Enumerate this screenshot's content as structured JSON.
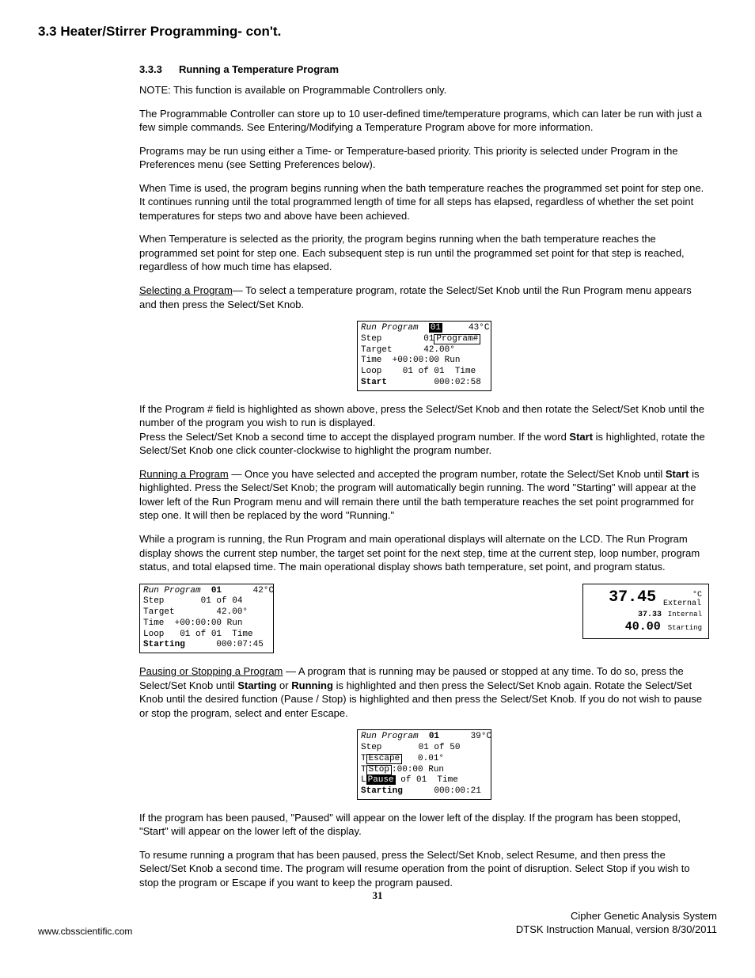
{
  "heading": "3.3 Heater/Stirrer Programming- con't.",
  "sub_num": "3.3.3",
  "sub_title": "Running a Temperature Program",
  "p_note": "NOTE: This function is available on Programmable Controllers only.",
  "p_store": "The Programmable Controller can store up to 10 user-defined time/temperature programs, which can later be run with just a few simple commands. See Entering/Modifying a Temperature Program above for more information.",
  "p_priority": "Programs may be run using either a Time- or Temperature-based priority.  This priority is selected under Program in the Preferences menu (see Setting Preferences below).",
  "p_time": "When Time is used, the program begins running when the bath temperature reaches the programmed set point for step one. It continues running until the total programmed length of time for all steps has elapsed, regardless of whether the set point temperatures for steps two and above have been achieved.",
  "p_temp": "When Temperature is selected as the priority, the program begins running when the bath temperature reaches the programmed set point for step one. Each subsequent step is run until the programmed set point for that step is reached, regardless of how much time has elapsed.",
  "sel_lead": "Selecting a Program",
  "sel_rest": "— To select a temperature program, rotate the Select/Set Knob until the Run Program menu appears and then press the Select/Set Knob.",
  "lcd1": {
    "l1a": "Run Program",
    "l1b": "01",
    "l1c": "43°C",
    "l2a": "Step        01",
    "l2b": "Program#",
    "l3": "Target      42.00°",
    "l4": "Time  +00:00:00 Run",
    "l5": "Loop    01 of 01  Time",
    "l6a": "Start",
    "l6b": "000:02:58"
  },
  "p_prognum_a": "If the Program # field is highlighted as shown above, press the Select/Set Knob and then rotate the Select/Set Knob until the number of the program you wish to run is displayed.",
  "p_prognum_b_prefix": "Press the Select/Set Knob a second time to accept the displayed program number. If the word ",
  "p_prognum_b_bold": "Start",
  "p_prognum_b_suffix": " is highlighted, rotate the Select/Set Knob one click counter-clockwise to highlight the program number.",
  "run_lead": "Running a Program",
  "run_rest_a": " — Once you have selected and accepted the program number, rotate the Select/Set Knob until ",
  "run_bold": "Start",
  "run_rest_b": " is highlighted. Press the Select/Set Knob; the program will automatically begin running. The word \"Starting\" will appear at the lower left of the Run Program menu and will remain there until the bath temperature reaches the set point programmed for step one. It will then be replaced by the word \"Running.\"",
  "p_while": "While a program is running, the Run Program and main operational displays will alternate on the LCD. The Run Program display shows the current step number, the target set point for the next step, time at the current step, loop number, program status, and total elapsed time. The main operational display shows bath temperature, set point, and program status.",
  "lcd2": {
    "l1a": "Run Program",
    "l1b": "01",
    "l1c": "42°C",
    "l2": "Step       01 of 04",
    "l3": "Target        42.00°",
    "l4": "Time  +00:00:00 Run",
    "l5": "Loop   01 of 01  Time",
    "l6a": "Starting",
    "l6b": "000:07:45"
  },
  "op": {
    "big": "37.45",
    "unit": "°C",
    "ext": "External",
    "int_v": "37.33",
    "int_l": "Internal",
    "sp": "40.00",
    "sp_l": "Starting"
  },
  "pause_lead": "Pausing or Stopping a Program",
  "pause_a": " — A program that is running may be paused or stopped at any time. To do so, press the Select/Set Knob until ",
  "pause_b1": "Starting",
  "pause_or": " or ",
  "pause_b2": "Running",
  "pause_c": " is highlighted and then press the Select/Set Knob again. Rotate the Select/Set Knob until the desired function (Pause / Stop) is highlighted and then press the Select/Set Knob. If you do not wish to pause or stop the program, select and enter Escape.",
  "lcd3": {
    "l1a": "Run Program",
    "l1b": "01",
    "l1c": "39°C",
    "l2": "Step       01 of 50",
    "l3a": "T",
    "l3b": "Escape",
    "l3c": "   0.01°",
    "l4a": "T",
    "l4b": "Stop",
    "l4c": ":00:00 Run",
    "l5a": "L",
    "l5b": "Pause",
    "l5c": " of 01  Time",
    "l6a": "Starting",
    "l6b": "000:00:21"
  },
  "p_paused": "If the program has been paused,  \"Paused\" will appear on the lower left of the display. If the program has been stopped, \"Start\" will appear on the lower left of the display.",
  "p_resume": "To resume running a program that has been paused, press the Select/Set Knob, select Resume, and then press the Select/Set Knob a second time. The program will resume operation from the point of disruption. Select Stop if you wish to stop the program or Escape if you want to keep the program paused.",
  "page_num": "31",
  "footer_r1": "Cipher Genetic Analysis System",
  "footer_r2": "DTSK Instruction Manual, version 8/30/2011",
  "footer_l": "www.cbsscientific.com"
}
